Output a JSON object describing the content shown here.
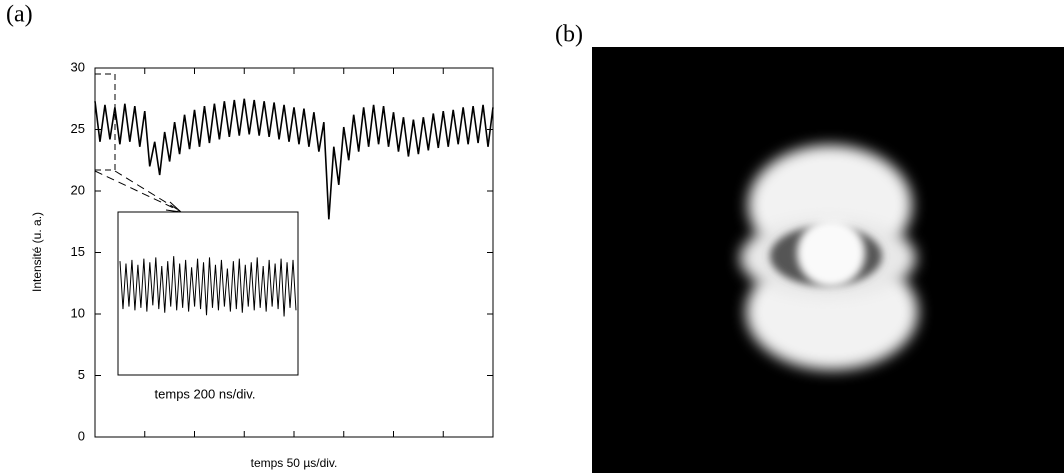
{
  "panel_labels": [
    "(a)",
    "(b)"
  ],
  "chart_data": {
    "type": "line",
    "ylabel": "Intensité (u. a.)",
    "xlabel": "temps 50 µs/div.",
    "xlim": [
      0,
      8
    ],
    "xticks": [
      1,
      2,
      3,
      4,
      5,
      6,
      7
    ],
    "ylim": [
      0,
      30
    ],
    "yticks": [
      0,
      5,
      10,
      15,
      20,
      25,
      30
    ],
    "x": [
      0.0,
      0.1,
      0.2,
      0.3,
      0.4,
      0.5,
      0.6,
      0.7,
      0.8,
      0.9,
      1.0,
      1.1,
      1.2,
      1.3,
      1.4,
      1.5,
      1.6,
      1.7,
      1.8,
      1.9,
      2.0,
      2.1,
      2.2,
      2.3,
      2.4,
      2.5,
      2.6,
      2.7,
      2.8,
      2.9,
      3.0,
      3.1,
      3.2,
      3.3,
      3.4,
      3.5,
      3.6,
      3.7,
      3.8,
      3.9,
      4.0,
      4.1,
      4.2,
      4.3,
      4.4,
      4.5,
      4.6,
      4.7,
      4.8,
      4.9,
      5.0,
      5.1,
      5.2,
      5.3,
      5.4,
      5.5,
      5.6,
      5.7,
      5.8,
      5.9,
      6.0,
      6.1,
      6.2,
      6.3,
      6.4,
      6.5,
      6.6,
      6.7,
      6.8,
      6.9,
      7.0,
      7.1,
      7.2,
      7.3,
      7.4,
      7.5,
      7.6,
      7.7,
      7.8,
      7.9,
      8.0
    ],
    "series": [
      {
        "color": "#000000",
        "values": [
          27.3,
          24.0,
          27.0,
          24.2,
          26.8,
          23.8,
          27.1,
          24.0,
          26.9,
          23.6,
          26.5,
          22.0,
          24.0,
          21.3,
          24.8,
          22.4,
          25.6,
          23.0,
          26.2,
          23.4,
          26.6,
          23.6,
          26.9,
          23.9,
          27.1,
          24.2,
          27.3,
          24.4,
          27.4,
          24.5,
          27.5,
          24.6,
          27.4,
          24.5,
          27.3,
          24.4,
          27.2,
          24.2,
          27.0,
          24.0,
          26.8,
          23.8,
          26.7,
          23.6,
          26.4,
          23.2,
          25.6,
          17.7,
          23.6,
          20.5,
          25.2,
          22.5,
          26.2,
          23.2,
          26.8,
          23.6,
          27.0,
          23.8,
          26.9,
          23.6,
          26.4,
          23.2,
          26.0,
          22.8,
          25.8,
          23.0,
          26.0,
          23.3,
          26.3,
          23.5,
          26.5,
          23.6,
          26.6,
          23.8,
          26.8,
          23.8,
          26.9,
          23.9,
          27.0,
          23.6,
          26.8
        ]
      }
    ],
    "inset": {
      "xlabel": "temps 200 ns/div.",
      "color": "#000000",
      "values": [
        14.3,
        10.4,
        14.1,
        10.6,
        14.4,
        10.3,
        14.0,
        10.5,
        14.5,
        10.2,
        14.2,
        10.7,
        14.6,
        10.4,
        13.9,
        10.1,
        14.3,
        10.6,
        14.7,
        10.3,
        14.1,
        10.5,
        14.4,
        10.2,
        13.8,
        10.6,
        14.5,
        10.4,
        14.2,
        9.9,
        14.6,
        10.5,
        14.0,
        10.3,
        14.4,
        10.6,
        13.7,
        10.2,
        14.3,
        10.4,
        14.5,
        10.1,
        14.0,
        10.6,
        14.2,
        10.3,
        14.6,
        10.5,
        13.9,
        10.2,
        14.4,
        10.6,
        14.1,
        10.4,
        14.5,
        9.8,
        14.2,
        10.5,
        14.4,
        10.3
      ]
    }
  }
}
